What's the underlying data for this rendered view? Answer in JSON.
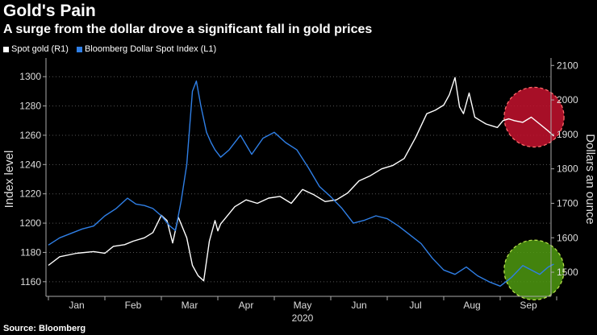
{
  "title": "Gold's Pain",
  "subtitle": "A surge from the dollar drove a significant fall in gold prices",
  "source": "Source: Bloomberg",
  "colors": {
    "gold": "#ffffff",
    "dollar": "#2f7fe6",
    "red_circle": "#c4122e",
    "green_circle": "#4f9a10"
  },
  "chart_data": {
    "type": "line",
    "title": "Gold's Pain",
    "xlabel": "2020",
    "ylabel_left": "Index level",
    "ylabel_right": "Dollars an ounce",
    "ylim_left": [
      1150,
      1310
    ],
    "ylim_right": [
      1430,
      2110
    ],
    "x_ticks": [
      "Jan",
      "Feb",
      "Mar",
      "Apr",
      "May",
      "Jun",
      "Jul",
      "Aug",
      "Sep"
    ],
    "year_label": "2020",
    "left_ticks": [
      "1160",
      "1180",
      "1200",
      "1220",
      "1240",
      "1260",
      "1280",
      "1300"
    ],
    "right_ticks": [
      "1500",
      "1600",
      "1700",
      "1800",
      "1900",
      "2000",
      "2100"
    ],
    "series": [
      {
        "name": "Spot gold (R1)",
        "axis": "right",
        "x": [
          0,
          0.2,
          0.5,
          0.8,
          1.0,
          1.15,
          1.35,
          1.5,
          1.7,
          1.85,
          2.0,
          2.1,
          2.2,
          2.3,
          2.45,
          2.55,
          2.65,
          2.75,
          2.85,
          2.95,
          3.0,
          3.05,
          3.15,
          3.3,
          3.5,
          3.7,
          3.9,
          4.1,
          4.3,
          4.5,
          4.7,
          4.9,
          5.1,
          5.3,
          5.5,
          5.7,
          5.9,
          6.1,
          6.3,
          6.5,
          6.7,
          6.85,
          7.0,
          7.1,
          7.2,
          7.28,
          7.35,
          7.45,
          7.55,
          7.65,
          7.75,
          7.85,
          7.95,
          8.05,
          8.15,
          8.25,
          8.4,
          8.55,
          8.7,
          8.85,
          8.95
        ],
        "values": [
          1520,
          1545,
          1555,
          1560,
          1555,
          1575,
          1580,
          1590,
          1600,
          1615,
          1665,
          1650,
          1585,
          1660,
          1600,
          1520,
          1490,
          1475,
          1590,
          1650,
          1620,
          1640,
          1660,
          1690,
          1710,
          1700,
          1715,
          1720,
          1700,
          1740,
          1725,
          1705,
          1710,
          1730,
          1765,
          1780,
          1800,
          1810,
          1830,
          1890,
          1960,
          1970,
          1985,
          2015,
          2065,
          1980,
          1960,
          2020,
          1950,
          1940,
          1930,
          1925,
          1920,
          1940,
          1945,
          1940,
          1935,
          1950,
          1930,
          1910,
          1895
        ]
      },
      {
        "name": "Bloomberg Dollar Spot Index (L1)",
        "axis": "left",
        "x": [
          0,
          0.2,
          0.4,
          0.6,
          0.8,
          1.0,
          1.2,
          1.4,
          1.55,
          1.7,
          1.85,
          2.0,
          2.15,
          2.25,
          2.35,
          2.45,
          2.55,
          2.62,
          2.7,
          2.8,
          2.88,
          2.95,
          3.05,
          3.2,
          3.4,
          3.6,
          3.8,
          4.0,
          4.2,
          4.4,
          4.6,
          4.8,
          5.0,
          5.2,
          5.4,
          5.6,
          5.8,
          6.0,
          6.2,
          6.4,
          6.6,
          6.8,
          7.0,
          7.2,
          7.4,
          7.6,
          7.8,
          8.0,
          8.2,
          8.4,
          8.55,
          8.7,
          8.85,
          8.95
        ],
        "values": [
          1185,
          1190,
          1193,
          1196,
          1198,
          1205,
          1210,
          1217,
          1213,
          1212,
          1210,
          1205,
          1198,
          1195,
          1215,
          1240,
          1290,
          1297,
          1280,
          1262,
          1255,
          1250,
          1245,
          1250,
          1260,
          1247,
          1258,
          1262,
          1255,
          1250,
          1238,
          1225,
          1218,
          1210,
          1200,
          1202,
          1205,
          1203,
          1198,
          1192,
          1186,
          1176,
          1168,
          1165,
          1170,
          1164,
          1160,
          1157,
          1163,
          1171,
          1168,
          1165,
          1170,
          1172
        ]
      }
    ],
    "annotations": [
      {
        "type": "circle",
        "color": "red",
        "series": "Spot gold (R1)",
        "x": 8.6,
        "value_right": 1950,
        "radius_months": 1.0
      },
      {
        "type": "circle",
        "color": "green",
        "series": "Bloomberg Dollar Spot Index (L1)",
        "x": 8.6,
        "value_left": 1168,
        "radius_months": 1.0
      }
    ]
  }
}
